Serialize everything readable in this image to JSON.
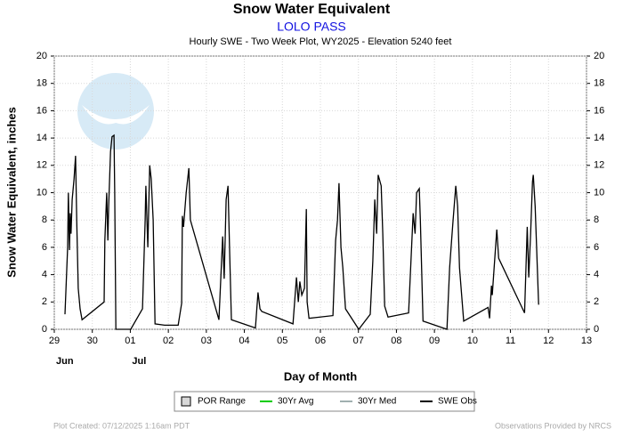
{
  "chart_data": {
    "type": "line",
    "title": "Snow Water Equivalent",
    "station": "LOLO PASS",
    "subtitle": "Hourly SWE - Two Week Plot, WY2025 -  Elevation 5240 feet",
    "y_label": "Snow Water Equivalent, inches",
    "x_label": "Day of Month",
    "xlim": [
      0,
      14
    ],
    "xticks": [
      {
        "value": 0,
        "label": "29"
      },
      {
        "value": 1,
        "label": "30"
      },
      {
        "value": 2,
        "label": "01"
      },
      {
        "value": 3,
        "label": "02"
      },
      {
        "value": 4,
        "label": "03"
      },
      {
        "value": 5,
        "label": "04"
      },
      {
        "value": 6,
        "label": "05"
      },
      {
        "value": 7,
        "label": "06"
      },
      {
        "value": 8,
        "label": "07"
      },
      {
        "value": 9,
        "label": "08"
      },
      {
        "value": 10,
        "label": "09"
      },
      {
        "value": 11,
        "label": "10"
      },
      {
        "value": 12,
        "label": "11"
      },
      {
        "value": 13,
        "label": "12"
      },
      {
        "value": 14,
        "label": "13"
      }
    ],
    "month_labels": [
      {
        "value": 0,
        "label": "Jun"
      },
      {
        "value": 2,
        "label": "Jul"
      }
    ],
    "ylim": [
      0,
      20
    ],
    "yticks": [
      0,
      2,
      4,
      6,
      8,
      10,
      12,
      14,
      16,
      18,
      20
    ],
    "grid": true,
    "legend": [
      {
        "name": "POR Range",
        "color": "#d8d8d8",
        "symbol": "box"
      },
      {
        "name": "30Yr Avg",
        "color": "#00cc00",
        "symbol": "line"
      },
      {
        "name": "30Yr Med",
        "color": "#a0b0b0",
        "symbol": "line"
      }
    ],
    "series": [
      {
        "name": "SWE Obs",
        "color": "#000000",
        "x": [
          0.28,
          0.35,
          0.37,
          0.4,
          0.42,
          0.44,
          0.47,
          0.52,
          0.56,
          0.59,
          0.63,
          0.68,
          0.73,
          1.31,
          1.33,
          1.38,
          1.41,
          1.43,
          1.48,
          1.52,
          1.57,
          1.59,
          1.62,
          2.01,
          2.32,
          2.39,
          2.41,
          2.46,
          2.51,
          2.55,
          2.6,
          2.65,
          2.9,
          3.26,
          3.35,
          3.37,
          3.4,
          3.47,
          3.54,
          3.58,
          4.33,
          4.43,
          4.47,
          4.52,
          4.57,
          4.61,
          4.66,
          5.29,
          5.36,
          5.41,
          5.46,
          6.28,
          6.37,
          6.42,
          6.46,
          6.51,
          6.58,
          6.63,
          6.65,
          6.7,
          7.33,
          7.4,
          7.45,
          7.49,
          7.54,
          7.59,
          7.66,
          8.01,
          8.31,
          8.38,
          8.43,
          8.48,
          8.52,
          8.6,
          8.64,
          8.69,
          8.78,
          9.32,
          9.39,
          9.44,
          9.49,
          9.53,
          9.6,
          9.63,
          9.7,
          10.33,
          10.4,
          10.45,
          10.49,
          10.56,
          10.61,
          10.66,
          10.77,
          11.41,
          11.45,
          11.5,
          11.52,
          11.57,
          11.64,
          11.69,
          12.37,
          12.44,
          12.48,
          12.53,
          12.58,
          12.6,
          12.65,
          12.74
        ],
        "values": [
          1.1,
          6,
          10,
          5.8,
          8.5,
          7,
          9.5,
          11,
          12.7,
          8,
          3,
          1.5,
          0.7,
          2,
          6.5,
          10,
          6.5,
          9,
          13,
          14.1,
          14.2,
          10,
          0,
          0,
          1.5,
          8,
          10.5,
          6,
          12,
          11,
          8,
          0.4,
          0.3,
          0.3,
          1.9,
          8.3,
          7.5,
          10,
          11.8,
          8,
          0.7,
          6.8,
          3.7,
          9.5,
          10.5,
          6,
          0.7,
          0.1,
          2.7,
          1.5,
          1.3,
          0.4,
          3.8,
          2,
          3.5,
          2.5,
          3,
          8.8,
          2,
          0.8,
          1,
          6.5,
          8,
          10.7,
          6,
          4.5,
          1.5,
          0,
          1.1,
          5,
          9.5,
          7,
          11.3,
          10.5,
          7,
          1.7,
          0.9,
          1.2,
          5.5,
          8.5,
          7,
          10,
          10.3,
          8,
          0.6,
          0,
          4.5,
          6.5,
          8,
          10.5,
          9,
          4.5,
          0.6,
          1.6,
          0.8,
          3.2,
          2.5,
          4.5,
          7.3,
          5.2,
          1.2,
          7.5,
          3.8,
          7,
          10.8,
          11.3,
          9,
          1.8
        ]
      }
    ],
    "footer_left": "Plot Created: 07/12/2025 1:16am PDT",
    "footer_right": "Observations Provided by NRCS"
  }
}
